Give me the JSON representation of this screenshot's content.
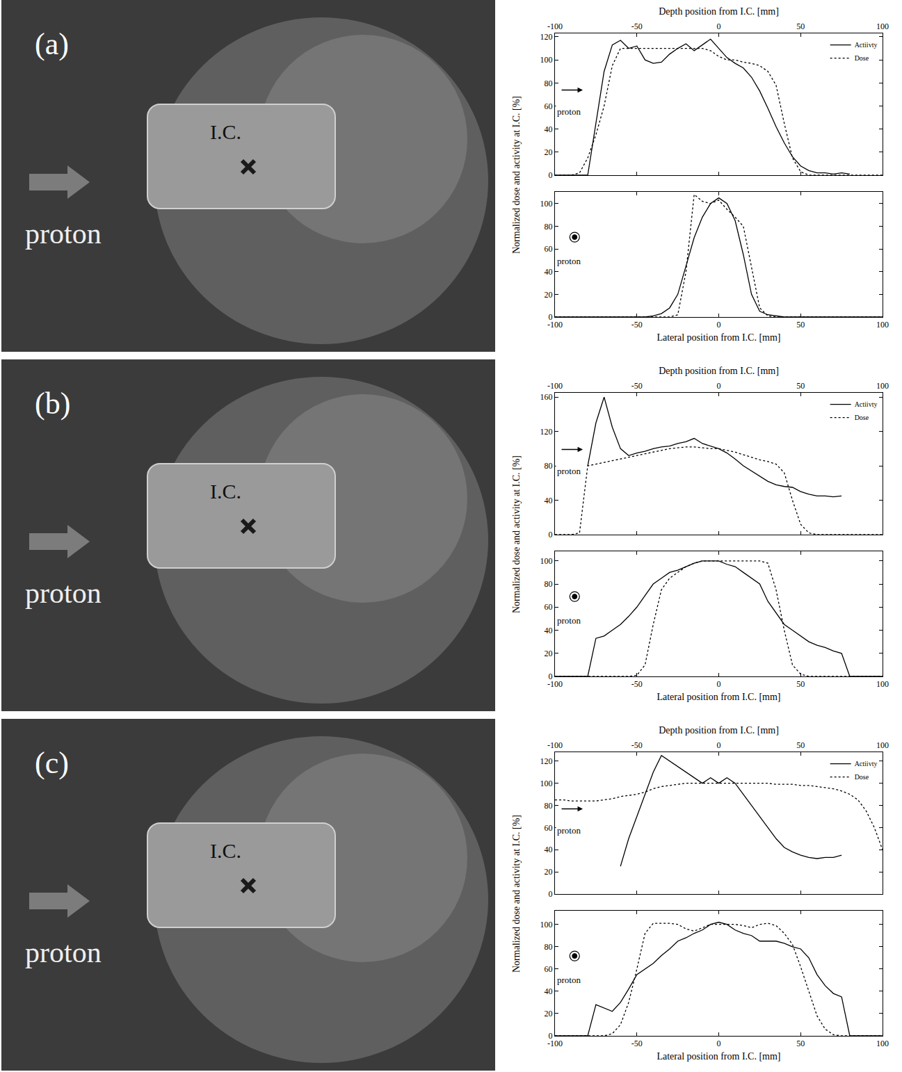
{
  "panels": [
    {
      "label": "(a)",
      "beam": "proton",
      "isocenter": "I.C."
    },
    {
      "label": "(b)",
      "beam": "proton",
      "isocenter": "I.C."
    },
    {
      "label": "(c)",
      "beam": "proton",
      "isocenter": "I.C."
    }
  ],
  "chart_data": [
    {
      "type": "line",
      "xlabel": "Depth position from I.C. [mm]",
      "ylabel": "Normalized dose and activity at I.C. [%]",
      "x": [
        -100,
        -95,
        -90,
        -85,
        -80,
        -75,
        -70,
        -65,
        -60,
        -55,
        -50,
        -45,
        -40,
        -35,
        -30,
        -25,
        -20,
        -15,
        -10,
        -5,
        0,
        5,
        10,
        15,
        20,
        25,
        30,
        35,
        40,
        45,
        50,
        55,
        60,
        65,
        70,
        75,
        80,
        85,
        90,
        95,
        100
      ],
      "xlim": [
        -100,
        100
      ],
      "xticks": [
        -100,
        -50,
        0,
        50,
        100
      ],
      "ylim": [
        0,
        123
      ],
      "yticks": [
        0,
        20,
        40,
        60,
        80,
        100,
        120
      ],
      "legend": "top right",
      "annotations": [
        "proton"
      ],
      "series": [
        {
          "name": "Actiivty",
          "color": "#000000",
          "line_style": "solid",
          "values": [
            0,
            0,
            0,
            0,
            0,
            45,
            90,
            113,
            117,
            110,
            112,
            100,
            97,
            98,
            105,
            110,
            114,
            108,
            113,
            118,
            110,
            102,
            97,
            93,
            85,
            73,
            58,
            42,
            28,
            16,
            8,
            4,
            2,
            2,
            1,
            2,
            1,
            null,
            null,
            null,
            null
          ]
        },
        {
          "name": "Dose",
          "color": "#000000",
          "line_style": "dotted",
          "values": [
            0,
            0,
            0,
            2,
            15,
            35,
            60,
            95,
            110,
            110,
            110,
            110,
            110,
            110,
            110,
            110,
            110,
            110,
            110,
            108,
            103,
            100,
            100,
            98,
            97,
            95,
            90,
            78,
            45,
            15,
            3,
            0,
            0,
            0,
            0,
            0,
            0,
            0,
            0,
            0,
            0
          ]
        }
      ]
    },
    {
      "type": "line",
      "xlabel": "Lateral position from I.C. [mm]",
      "x": [
        -100,
        -95,
        -90,
        -85,
        -80,
        -75,
        -70,
        -65,
        -60,
        -55,
        -50,
        -45,
        -40,
        -35,
        -30,
        -25,
        -20,
        -15,
        -10,
        -5,
        0,
        5,
        10,
        15,
        20,
        25,
        30,
        35,
        40,
        45,
        50,
        55,
        60,
        65,
        70,
        75,
        80,
        85,
        90,
        95,
        100
      ],
      "xlim": [
        -100,
        100
      ],
      "xticks": [
        -100,
        -50,
        0,
        50,
        100
      ],
      "ylim": [
        0,
        110
      ],
      "yticks": [
        0,
        20,
        40,
        60,
        80,
        100
      ],
      "annotations": [
        "proton"
      ],
      "series": [
        {
          "color": "#000000",
          "line_style": "solid",
          "values": [
            0,
            0,
            0,
            0,
            0,
            0,
            0,
            0,
            0,
            0,
            0,
            0,
            1,
            3,
            8,
            20,
            45,
            70,
            88,
            100,
            105,
            100,
            85,
            55,
            20,
            5,
            2,
            1,
            0,
            0,
            0,
            0,
            0,
            0,
            0,
            0,
            0,
            0,
            0,
            0,
            0
          ]
        },
        {
          "color": "#000000",
          "line_style": "dotted",
          "values": [
            0,
            0,
            0,
            0,
            0,
            0,
            0,
            0,
            0,
            0,
            0,
            0,
            0,
            0,
            0,
            2,
            40,
            108,
            102,
            100,
            103,
            95,
            88,
            80,
            45,
            8,
            1,
            0,
            0,
            0,
            0,
            0,
            0,
            0,
            0,
            0,
            0,
            0,
            0,
            0,
            0
          ]
        }
      ]
    },
    {
      "type": "line",
      "xlabel": "Depth position from I.C. [mm]",
      "ylabel": "Normalized dose and activity at I.C. [%]",
      "x": [
        -100,
        -95,
        -90,
        -85,
        -80,
        -75,
        -70,
        -65,
        -60,
        -55,
        -50,
        -45,
        -40,
        -35,
        -30,
        -25,
        -20,
        -15,
        -10,
        -5,
        0,
        5,
        10,
        15,
        20,
        25,
        30,
        35,
        40,
        45,
        50,
        55,
        60,
        65,
        70,
        75,
        80,
        85,
        90,
        95,
        100
      ],
      "xlim": [
        -100,
        100
      ],
      "xticks": [
        -100,
        -50,
        0,
        50,
        100
      ],
      "ylim": [
        0,
        165
      ],
      "yticks": [
        0,
        40,
        80,
        120,
        160
      ],
      "legend": "top right",
      "annotations": [
        "proton"
      ],
      "series": [
        {
          "name": "Actiivty",
          "color": "#000000",
          "line_style": "solid",
          "values": [
            null,
            null,
            null,
            null,
            80,
            130,
            160,
            125,
            100,
            92,
            95,
            97,
            100,
            102,
            103,
            106,
            108,
            112,
            106,
            103,
            100,
            95,
            88,
            80,
            74,
            68,
            62,
            58,
            56,
            55,
            50,
            47,
            45,
            45,
            44,
            45,
            null,
            null,
            null,
            null,
            null
          ]
        },
        {
          "name": "Dose",
          "color": "#000000",
          "line_style": "dotted",
          "values": [
            0,
            0,
            0,
            2,
            80,
            82,
            84,
            86,
            88,
            90,
            92,
            94,
            96,
            98,
            100,
            101,
            102,
            102,
            101,
            100,
            100,
            98,
            96,
            93,
            90,
            87,
            85,
            82,
            72,
            40,
            12,
            2,
            0,
            0,
            0,
            0,
            0,
            0,
            0,
            0,
            0
          ]
        }
      ]
    },
    {
      "type": "line",
      "xlabel": "Lateral position from I.C. [mm]",
      "x": [
        -100,
        -95,
        -90,
        -85,
        -80,
        -75,
        -70,
        -65,
        -60,
        -55,
        -50,
        -45,
        -40,
        -35,
        -30,
        -25,
        -20,
        -15,
        -10,
        -5,
        0,
        5,
        10,
        15,
        20,
        25,
        30,
        35,
        40,
        45,
        50,
        55,
        60,
        65,
        70,
        75,
        80,
        85,
        90,
        95,
        100
      ],
      "xlim": [
        -100,
        100
      ],
      "xticks": [
        -100,
        -50,
        0,
        50,
        100
      ],
      "ylim": [
        0,
        108
      ],
      "yticks": [
        0,
        20,
        40,
        60,
        80,
        100
      ],
      "annotations": [
        "proton"
      ],
      "series": [
        {
          "color": "#000000",
          "line_style": "solid",
          "values": [
            0,
            0,
            0,
            0,
            0,
            33,
            35,
            40,
            45,
            52,
            60,
            70,
            80,
            85,
            90,
            92,
            95,
            98,
            100,
            100,
            100,
            97,
            95,
            90,
            85,
            80,
            65,
            55,
            45,
            40,
            35,
            30,
            27,
            25,
            22,
            20,
            0,
            0,
            0,
            0,
            0
          ]
        },
        {
          "color": "#000000",
          "line_style": "dotted",
          "values": [
            0,
            0,
            0,
            0,
            0,
            0,
            0,
            0,
            0,
            0,
            1,
            10,
            45,
            75,
            85,
            90,
            95,
            98,
            100,
            100,
            100,
            100,
            100,
            100,
            100,
            100,
            98,
            75,
            40,
            10,
            2,
            0,
            0,
            0,
            0,
            0,
            0,
            0,
            0,
            0,
            0
          ]
        }
      ]
    },
    {
      "type": "line",
      "xlabel": "Depth position from I.C. [mm]",
      "ylabel": "Normalized dose and activity at I.C. [%]",
      "x": [
        -100,
        -95,
        -90,
        -85,
        -80,
        -75,
        -70,
        -65,
        -60,
        -55,
        -50,
        -45,
        -40,
        -35,
        -30,
        -25,
        -20,
        -15,
        -10,
        -5,
        0,
        5,
        10,
        15,
        20,
        25,
        30,
        35,
        40,
        45,
        50,
        55,
        60,
        65,
        70,
        75,
        80,
        85,
        90,
        95,
        100
      ],
      "xlim": [
        -100,
        100
      ],
      "xticks": [
        -100,
        -50,
        0,
        50,
        100
      ],
      "ylim": [
        0,
        128
      ],
      "yticks": [
        0,
        20,
        40,
        60,
        80,
        100,
        120
      ],
      "legend": "top right",
      "annotations": [
        "proton"
      ],
      "series": [
        {
          "name": "Actiivty",
          "color": "#000000",
          "line_style": "solid",
          "values": [
            null,
            null,
            null,
            null,
            null,
            null,
            null,
            null,
            25,
            50,
            70,
            90,
            110,
            125,
            120,
            115,
            110,
            105,
            100,
            105,
            100,
            105,
            100,
            90,
            80,
            70,
            60,
            50,
            42,
            38,
            35,
            33,
            32,
            33,
            33,
            35,
            null,
            null,
            null,
            null,
            null
          ]
        },
        {
          "name": "Dose",
          "color": "#000000",
          "line_style": "dotted",
          "values": [
            85,
            85,
            84,
            84,
            84,
            84,
            85,
            86,
            88,
            89,
            90,
            92,
            95,
            97,
            98,
            99,
            100,
            100,
            100,
            100,
            100,
            100,
            100,
            100,
            100,
            100,
            100,
            99,
            99,
            99,
            98,
            98,
            97,
            96,
            95,
            93,
            90,
            85,
            75,
            60,
            40
          ]
        }
      ]
    },
    {
      "type": "line",
      "xlabel": "Lateral position from I.C. [mm]",
      "x": [
        -100,
        -95,
        -90,
        -85,
        -80,
        -75,
        -70,
        -65,
        -60,
        -55,
        -50,
        -45,
        -40,
        -35,
        -30,
        -25,
        -20,
        -15,
        -10,
        -5,
        0,
        5,
        10,
        15,
        20,
        25,
        30,
        35,
        40,
        45,
        50,
        55,
        60,
        65,
        70,
        75,
        80,
        85,
        90,
        95,
        100
      ],
      "xlim": [
        -100,
        100
      ],
      "xticks": [
        -100,
        -50,
        0,
        50,
        100
      ],
      "ylim": [
        0,
        112
      ],
      "yticks": [
        0,
        20,
        40,
        60,
        80,
        100
      ],
      "annotations": [
        "proton"
      ],
      "series": [
        {
          "color": "#000000",
          "line_style": "solid",
          "values": [
            0,
            0,
            0,
            0,
            0,
            28,
            25,
            22,
            30,
            42,
            55,
            60,
            65,
            72,
            78,
            85,
            88,
            92,
            95,
            100,
            102,
            100,
            95,
            92,
            90,
            85,
            85,
            85,
            83,
            80,
            78,
            70,
            55,
            45,
            38,
            35,
            0,
            0,
            0,
            0,
            0
          ]
        },
        {
          "color": "#000000",
          "line_style": "dotted",
          "values": [
            0,
            0,
            0,
            0,
            0,
            0,
            0,
            2,
            10,
            30,
            60,
            92,
            101,
            101,
            101,
            100,
            96,
            94,
            97,
            100,
            100,
            100,
            100,
            99,
            97,
            100,
            101,
            99,
            92,
            82,
            62,
            40,
            18,
            6,
            1,
            0,
            0,
            0,
            0,
            0,
            0
          ]
        }
      ]
    }
  ]
}
